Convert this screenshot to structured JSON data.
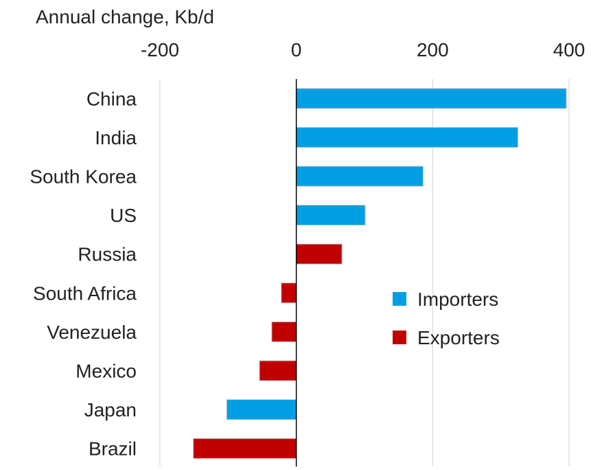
{
  "chart_data": {
    "type": "bar",
    "orientation": "horizontal",
    "title": "",
    "ylabel": "Annual change, Kb/d",
    "xlim": [
      -200,
      400
    ],
    "xticks": [
      -200,
      0,
      200,
      400
    ],
    "grid": true,
    "legend_position": "right",
    "categories": [
      "China",
      "India",
      "South Korea",
      "US",
      "Russia",
      "South Africa",
      "Venezuela",
      "Mexico",
      "Japan",
      "Brazil"
    ],
    "values": [
      396,
      325,
      186,
      101,
      67,
      -22,
      -36,
      -54,
      -102,
      -151
    ],
    "groups": [
      "Importers",
      "Importers",
      "Importers",
      "Importers",
      "Exporters",
      "Exporters",
      "Exporters",
      "Exporters",
      "Importers",
      "Exporters"
    ],
    "series": [
      {
        "name": "Importers",
        "color": "#009fe3"
      },
      {
        "name": "Exporters",
        "color": "#c00000"
      }
    ]
  }
}
